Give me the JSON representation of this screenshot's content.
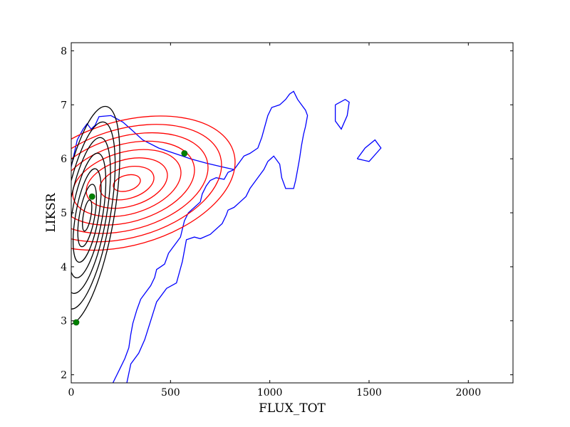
{
  "chart_data": {
    "type": "contour",
    "title": "",
    "xlabel": "FLUX_TOT",
    "ylabel": "LIKSR",
    "xlim": [
      0,
      2225
    ],
    "ylim": [
      1.85,
      8.15
    ],
    "xticks": [
      0,
      500,
      1000,
      1500,
      2000
    ],
    "yticks": [
      2,
      3,
      4,
      5,
      6,
      7,
      8
    ],
    "grid": false,
    "legend": "none",
    "colors": {
      "black_contours": "#000000",
      "red_contours": "#ff0000",
      "blue_contour": "#0000ff",
      "points": "#008000"
    },
    "black_contours": {
      "center": [
        80,
        4.95
      ],
      "rx_max": 135,
      "ry_max": 2.05,
      "levels": 7,
      "rotation_deg": 10
    },
    "red_contours": {
      "center": [
        280,
        5.55
      ],
      "rx_max": 560,
      "ry_max": 1.15,
      "levels": 8,
      "rotation_deg": -16
    },
    "blue_contour_outline": [
      [
        210,
        1.85
      ],
      [
        230,
        2.0
      ],
      [
        250,
        2.15
      ],
      [
        270,
        2.3
      ],
      [
        290,
        2.5
      ],
      [
        300,
        2.75
      ],
      [
        310,
        2.95
      ],
      [
        330,
        3.2
      ],
      [
        350,
        3.4
      ],
      [
        370,
        3.5
      ],
      [
        400,
        3.65
      ],
      [
        420,
        3.8
      ],
      [
        430,
        3.95
      ],
      [
        450,
        4.0
      ],
      [
        470,
        4.05
      ],
      [
        480,
        4.15
      ],
      [
        490,
        4.25
      ],
      [
        510,
        4.35
      ],
      [
        530,
        4.45
      ],
      [
        550,
        4.55
      ],
      [
        560,
        4.7
      ],
      [
        570,
        4.85
      ],
      [
        590,
        5.0
      ],
      [
        620,
        5.1
      ],
      [
        650,
        5.2
      ],
      [
        660,
        5.35
      ],
      [
        680,
        5.5
      ],
      [
        700,
        5.6
      ],
      [
        730,
        5.65
      ],
      [
        770,
        5.62
      ],
      [
        790,
        5.75
      ],
      [
        820,
        5.8
      ],
      [
        850,
        5.95
      ],
      [
        870,
        6.05
      ],
      [
        900,
        6.1
      ],
      [
        940,
        6.2
      ],
      [
        960,
        6.4
      ],
      [
        975,
        6.6
      ],
      [
        990,
        6.8
      ],
      [
        1010,
        6.95
      ],
      [
        1050,
        7.0
      ],
      [
        1080,
        7.1
      ],
      [
        1100,
        7.2
      ],
      [
        1120,
        7.25
      ],
      [
        1140,
        7.1
      ],
      [
        1160,
        7.0
      ],
      [
        1180,
        6.9
      ],
      [
        1190,
        6.8
      ],
      [
        1180,
        6.6
      ],
      [
        1170,
        6.45
      ],
      [
        1160,
        6.25
      ],
      [
        1150,
        6.0
      ],
      [
        1140,
        5.8
      ],
      [
        1130,
        5.6
      ],
      [
        1120,
        5.45
      ],
      [
        1080,
        5.45
      ],
      [
        1060,
        5.65
      ],
      [
        1050,
        5.9
      ],
      [
        1020,
        6.05
      ],
      [
        990,
        5.95
      ],
      [
        970,
        5.8
      ],
      [
        950,
        5.7
      ],
      [
        930,
        5.6
      ],
      [
        900,
        5.45
      ],
      [
        880,
        5.3
      ],
      [
        850,
        5.2
      ],
      [
        820,
        5.1
      ],
      [
        790,
        5.05
      ],
      [
        780,
        4.95
      ],
      [
        760,
        4.8
      ],
      [
        700,
        4.6
      ],
      [
        650,
        4.52
      ],
      [
        620,
        4.55
      ],
      [
        580,
        4.5
      ],
      [
        560,
        4.1
      ],
      [
        530,
        3.7
      ],
      [
        480,
        3.6
      ],
      [
        430,
        3.35
      ],
      [
        400,
        3.0
      ],
      [
        370,
        2.65
      ],
      [
        340,
        2.4
      ],
      [
        300,
        2.2
      ],
      [
        280,
        1.85
      ]
    ],
    "blue_upper_outline": [
      [
        0,
        5.85
      ],
      [
        30,
        6.35
      ],
      [
        60,
        6.55
      ],
      [
        80,
        6.65
      ],
      [
        100,
        6.55
      ],
      [
        120,
        6.62
      ],
      [
        140,
        6.78
      ],
      [
        200,
        6.8
      ],
      [
        260,
        6.68
      ],
      [
        300,
        6.55
      ],
      [
        360,
        6.35
      ],
      [
        440,
        6.2
      ],
      [
        520,
        6.1
      ],
      [
        600,
        6.0
      ],
      [
        680,
        5.92
      ],
      [
        760,
        5.85
      ],
      [
        820,
        5.8
      ]
    ],
    "blue_islands": [
      [
        [
          1440,
          6.0
        ],
        [
          1480,
          6.2
        ],
        [
          1530,
          6.35
        ],
        [
          1560,
          6.2
        ],
        [
          1500,
          5.95
        ],
        [
          1440,
          6.0
        ]
      ],
      [
        [
          1330,
          7.0
        ],
        [
          1380,
          7.1
        ],
        [
          1400,
          7.05
        ],
        [
          1390,
          6.8
        ],
        [
          1360,
          6.55
        ],
        [
          1330,
          6.7
        ],
        [
          1330,
          7.0
        ]
      ]
    ],
    "points": [
      {
        "x": 25,
        "y": 2.97
      },
      {
        "x": 105,
        "y": 5.3
      },
      {
        "x": 570,
        "y": 6.1
      }
    ]
  }
}
